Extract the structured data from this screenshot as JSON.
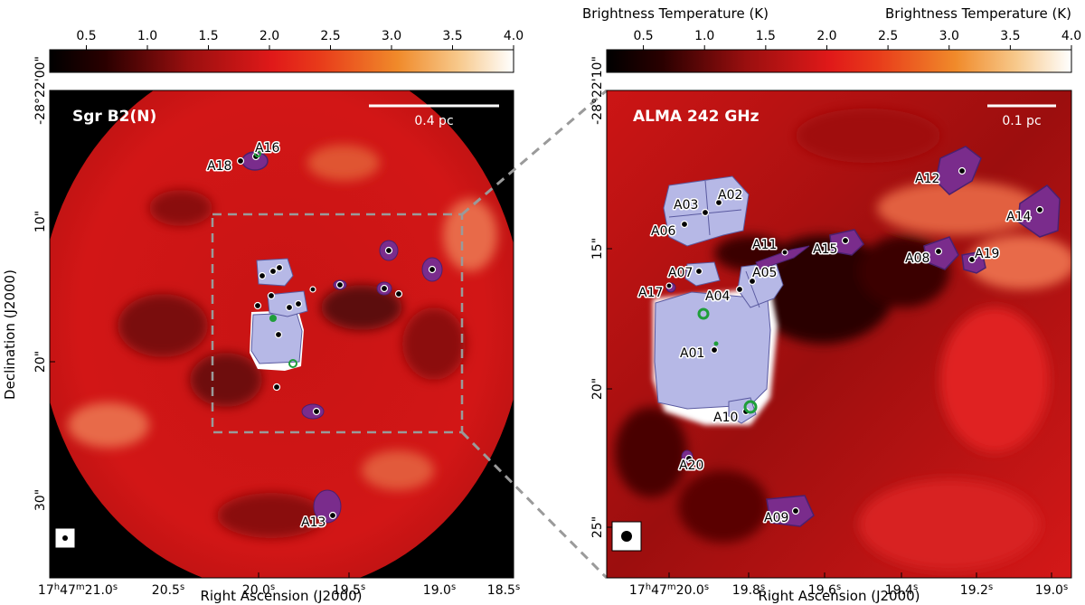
{
  "colorbar": {
    "label": "Brightness Temperature (K)",
    "ticks": [
      "0.5",
      "1.0",
      "1.5",
      "2.0",
      "2.5",
      "3.0",
      "3.5",
      "4.0"
    ],
    "tick_values": [
      0.5,
      1.0,
      1.5,
      2.0,
      2.5,
      3.0,
      3.5,
      4.0
    ],
    "range": [
      0.2,
      4.0
    ]
  },
  "chart_data": [
    {
      "type": "heatmap",
      "title": "Sgr B2(N)",
      "xlabel": "Right Ascension (J2000)",
      "ylabel": "Declination (J2000)",
      "scale_bar": "0.4 pc",
      "x_ticks": [
        "17h47m21.0s",
        "20.5s",
        "20.0s",
        "19.5s",
        "19.0s",
        "18.5s"
      ],
      "x_tick_parts": [
        {
          "a": "17",
          "b": "h",
          "c": "47",
          "d": "m",
          "e": "21.0",
          "f": "s"
        },
        {
          "a": "",
          "b": "",
          "c": "",
          "d": "",
          "e": "20.5",
          "f": "s"
        },
        {
          "a": "",
          "b": "",
          "c": "",
          "d": "",
          "e": "20.0",
          "f": "s"
        },
        {
          "a": "",
          "b": "",
          "c": "",
          "d": "",
          "e": "19.5",
          "f": "s"
        },
        {
          "a": "",
          "b": "",
          "c": "",
          "d": "",
          "e": "19.0",
          "f": "s"
        },
        {
          "a": "",
          "b": "",
          "c": "",
          "d": "",
          "e": "18.5",
          "f": "s"
        }
      ],
      "y_ticks": [
        "-28°22'00\"",
        "10\"",
        "20\"",
        "30\""
      ],
      "sources": [
        {
          "name": "A16",
          "ra_s": 19.99,
          "dec_s": 5.0
        },
        {
          "name": "A18",
          "ra_s": 20.07,
          "dec_s": 5.4
        },
        {
          "name": "A13",
          "ra_s": 19.6,
          "dec_s": 32.6
        }
      ]
    },
    {
      "type": "heatmap",
      "title": "ALMA 242 GHz",
      "xlabel": "Right Ascension (J2000)",
      "ylabel": "",
      "scale_bar": "0.1 pc",
      "x_ticks": [
        "17h47m20.0s",
        "19.8s",
        "19.6s",
        "19.4s",
        "19.2s",
        "19.0s"
      ],
      "x_tick_parts": [
        {
          "a": "17",
          "b": "h",
          "c": "47",
          "d": "m",
          "e": "20.0",
          "f": "s"
        },
        {
          "a": "",
          "b": "",
          "c": "",
          "d": "",
          "e": "19.8",
          "f": "s"
        },
        {
          "a": "",
          "b": "",
          "c": "",
          "d": "",
          "e": "19.6",
          "f": "s"
        },
        {
          "a": "",
          "b": "",
          "c": "",
          "d": "",
          "e": "19.4",
          "f": "s"
        },
        {
          "a": "",
          "b": "",
          "c": "",
          "d": "",
          "e": "19.2",
          "f": "s"
        },
        {
          "a": "",
          "b": "",
          "c": "",
          "d": "",
          "e": "19.0",
          "f": "s"
        }
      ],
      "y_ticks": [
        "-28°22'10\"",
        "15\"",
        "20\"",
        "25\""
      ],
      "sources": [
        {
          "name": "A01",
          "ra_s": 19.88,
          "dec_s": 18.5
        },
        {
          "name": "A02",
          "ra_s": 19.88,
          "dec_s": 13.4
        },
        {
          "name": "A03",
          "ra_s": 19.9,
          "dec_s": 13.7
        },
        {
          "name": "A04",
          "ra_s": 19.8,
          "dec_s": 16.2
        },
        {
          "name": "A05",
          "ra_s": 19.78,
          "dec_s": 15.9
        },
        {
          "name": "A06",
          "ra_s": 19.96,
          "dec_s": 14.1
        },
        {
          "name": "A07",
          "ra_s": 19.95,
          "dec_s": 15.5
        },
        {
          "name": "A08",
          "ra_s": 19.25,
          "dec_s": 15.0
        },
        {
          "name": "A09",
          "ra_s": 19.62,
          "dec_s": 24.6
        },
        {
          "name": "A10",
          "ra_s": 19.78,
          "dec_s": 21.1
        },
        {
          "name": "A11",
          "ra_s": 19.68,
          "dec_s": 15.0
        },
        {
          "name": "A12",
          "ra_s": 19.2,
          "dec_s": 12.0
        },
        {
          "name": "A14",
          "ra_s": 18.96,
          "dec_s": 13.7
        },
        {
          "name": "A15",
          "ra_s": 19.5,
          "dec_s": 14.6
        },
        {
          "name": "A17",
          "ra_s": 20.03,
          "dec_s": 16.0
        },
        {
          "name": "A19",
          "ra_s": 19.15,
          "dec_s": 15.4
        },
        {
          "name": "A20",
          "ra_s": 19.9,
          "dec_s": 22.6
        }
      ]
    }
  ]
}
